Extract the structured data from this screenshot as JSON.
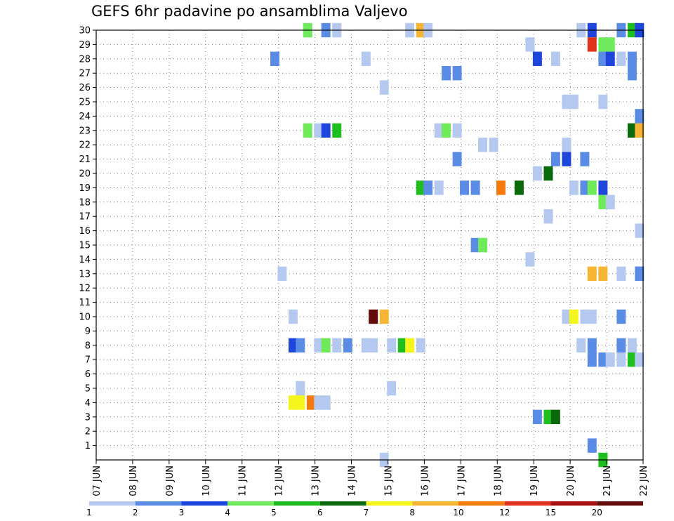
{
  "title": "GEFS 6hr padavine po ansamblima Valjevo",
  "chart_data": {
    "type": "heatmap",
    "title": "GEFS 6hr padavine po ansamblima Valjevo",
    "x_ticks": [
      "07 JUN",
      "08 JUN",
      "09 JUN",
      "10 JUN",
      "11 JUN",
      "12 JUN",
      "13 JUN",
      "14 JUN",
      "15 JUN",
      "16 JUN",
      "17 JUN",
      "18 JUN",
      "19 JUN",
      "20 JUN",
      "21 JUN",
      "22 JUN"
    ],
    "y_ticks": [
      "1",
      "2",
      "3",
      "4",
      "5",
      "6",
      "7",
      "8",
      "9",
      "10",
      "11",
      "12",
      "13",
      "14",
      "15",
      "16",
      "17",
      "18",
      "19",
      "20",
      "21",
      "22",
      "23",
      "24",
      "25",
      "26",
      "27",
      "28",
      "29",
      "30"
    ],
    "xlim": [
      7,
      22
    ],
    "ylim": [
      0,
      30
    ],
    "grid": true,
    "colorbar": {
      "labels": [
        "1",
        "2",
        "3",
        "4",
        "5",
        "6",
        "7",
        "8",
        "10",
        "12",
        "15",
        "20"
      ],
      "colors": [
        "#b4c8f0",
        "#5a8ce6",
        "#1e46dc",
        "#6eea5a",
        "#1ebe1e",
        "#0a690a",
        "#f5f51e",
        "#f5b432",
        "#f57a0a",
        "#e1321e",
        "#a50f0f",
        "#640a0a"
      ]
    },
    "cells": [
      {
        "x": 12.8,
        "y": 30,
        "v": "4"
      },
      {
        "x": 13.3,
        "y": 30,
        "v": "2"
      },
      {
        "x": 13.6,
        "y": 30,
        "v": "1"
      },
      {
        "x": 15.6,
        "y": 30,
        "v": "1"
      },
      {
        "x": 15.9,
        "y": 30,
        "v": "8"
      },
      {
        "x": 16.1,
        "y": 30,
        "v": "1"
      },
      {
        "x": 20.3,
        "y": 30,
        "v": "1"
      },
      {
        "x": 20.6,
        "y": 30,
        "v": "3"
      },
      {
        "x": 21.4,
        "y": 30,
        "v": "2"
      },
      {
        "x": 21.7,
        "y": 30,
        "v": "5"
      },
      {
        "x": 21.9,
        "y": 30,
        "v": "3"
      },
      {
        "x": 18.9,
        "y": 29,
        "v": "1"
      },
      {
        "x": 20.6,
        "y": 29,
        "v": "12"
      },
      {
        "x": 20.9,
        "y": 29,
        "v": "4"
      },
      {
        "x": 21.1,
        "y": 29,
        "v": "4"
      },
      {
        "x": 11.9,
        "y": 28,
        "v": "2"
      },
      {
        "x": 14.4,
        "y": 28,
        "v": "1"
      },
      {
        "x": 19.1,
        "y": 28,
        "v": "3"
      },
      {
        "x": 19.6,
        "y": 28,
        "v": "1"
      },
      {
        "x": 20.9,
        "y": 28,
        "v": "2"
      },
      {
        "x": 21.1,
        "y": 28,
        "v": "3"
      },
      {
        "x": 21.4,
        "y": 28,
        "v": "1"
      },
      {
        "x": 21.7,
        "y": 28,
        "v": "2"
      },
      {
        "x": 16.6,
        "y": 27,
        "v": "2"
      },
      {
        "x": 16.9,
        "y": 27,
        "v": "2"
      },
      {
        "x": 21.7,
        "y": 27,
        "v": "2"
      },
      {
        "x": 14.9,
        "y": 26,
        "v": "1"
      },
      {
        "x": 19.9,
        "y": 25,
        "v": "1"
      },
      {
        "x": 20.1,
        "y": 25,
        "v": "1"
      },
      {
        "x": 20.9,
        "y": 25,
        "v": "1"
      },
      {
        "x": 21.9,
        "y": 24,
        "v": "2"
      },
      {
        "x": 12.8,
        "y": 23,
        "v": "4"
      },
      {
        "x": 13.1,
        "y": 23,
        "v": "1"
      },
      {
        "x": 13.3,
        "y": 23,
        "v": "3"
      },
      {
        "x": 13.6,
        "y": 23,
        "v": "5"
      },
      {
        "x": 16.4,
        "y": 23,
        "v": "1"
      },
      {
        "x": 16.6,
        "y": 23,
        "v": "4"
      },
      {
        "x": 16.9,
        "y": 23,
        "v": "1"
      },
      {
        "x": 21.7,
        "y": 23,
        "v": "6"
      },
      {
        "x": 21.9,
        "y": 23,
        "v": "8"
      },
      {
        "x": 17.6,
        "y": 22,
        "v": "1"
      },
      {
        "x": 17.9,
        "y": 22,
        "v": "1"
      },
      {
        "x": 19.9,
        "y": 22,
        "v": "1"
      },
      {
        "x": 16.9,
        "y": 21,
        "v": "2"
      },
      {
        "x": 19.6,
        "y": 21,
        "v": "2"
      },
      {
        "x": 19.9,
        "y": 21,
        "v": "3"
      },
      {
        "x": 20.4,
        "y": 21,
        "v": "2"
      },
      {
        "x": 19.1,
        "y": 20,
        "v": "1"
      },
      {
        "x": 19.4,
        "y": 20,
        "v": "6"
      },
      {
        "x": 15.9,
        "y": 19,
        "v": "5"
      },
      {
        "x": 16.1,
        "y": 19,
        "v": "2"
      },
      {
        "x": 16.4,
        "y": 19,
        "v": "1"
      },
      {
        "x": 17.1,
        "y": 19,
        "v": "2"
      },
      {
        "x": 17.4,
        "y": 19,
        "v": "2"
      },
      {
        "x": 18.1,
        "y": 19,
        "v": "10"
      },
      {
        "x": 18.6,
        "y": 19,
        "v": "6"
      },
      {
        "x": 20.1,
        "y": 19,
        "v": "1"
      },
      {
        "x": 20.4,
        "y": 19,
        "v": "2"
      },
      {
        "x": 20.6,
        "y": 19,
        "v": "4"
      },
      {
        "x": 20.9,
        "y": 19,
        "v": "3"
      },
      {
        "x": 20.9,
        "y": 18,
        "v": "4"
      },
      {
        "x": 21.1,
        "y": 18,
        "v": "1"
      },
      {
        "x": 19.4,
        "y": 17,
        "v": "1"
      },
      {
        "x": 21.9,
        "y": 16,
        "v": "1"
      },
      {
        "x": 17.4,
        "y": 15,
        "v": "2"
      },
      {
        "x": 17.6,
        "y": 15,
        "v": "4"
      },
      {
        "x": 18.9,
        "y": 14,
        "v": "1"
      },
      {
        "x": 12.1,
        "y": 13,
        "v": "1"
      },
      {
        "x": 20.6,
        "y": 13,
        "v": "8"
      },
      {
        "x": 20.9,
        "y": 13,
        "v": "8"
      },
      {
        "x": 21.4,
        "y": 13,
        "v": "1"
      },
      {
        "x": 21.9,
        "y": 13,
        "v": "2"
      },
      {
        "x": 12.4,
        "y": 10,
        "v": "1"
      },
      {
        "x": 14.6,
        "y": 10,
        "v": "20"
      },
      {
        "x": 14.9,
        "y": 10,
        "v": "8"
      },
      {
        "x": 19.9,
        "y": 10,
        "v": "1"
      },
      {
        "x": 20.1,
        "y": 10,
        "v": "7"
      },
      {
        "x": 20.4,
        "y": 10,
        "v": "1"
      },
      {
        "x": 20.6,
        "y": 10,
        "v": "1"
      },
      {
        "x": 21.4,
        "y": 10,
        "v": "2"
      },
      {
        "x": 12.4,
        "y": 8,
        "v": "3"
      },
      {
        "x": 12.6,
        "y": 8,
        "v": "2"
      },
      {
        "x": 13.1,
        "y": 8,
        "v": "1"
      },
      {
        "x": 13.3,
        "y": 8,
        "v": "4"
      },
      {
        "x": 13.6,
        "y": 8,
        "v": "1"
      },
      {
        "x": 13.9,
        "y": 8,
        "v": "2"
      },
      {
        "x": 14.4,
        "y": 8,
        "v": "1"
      },
      {
        "x": 14.6,
        "y": 8,
        "v": "1"
      },
      {
        "x": 15.1,
        "y": 8,
        "v": "1"
      },
      {
        "x": 15.4,
        "y": 8,
        "v": "5"
      },
      {
        "x": 15.6,
        "y": 8,
        "v": "7"
      },
      {
        "x": 15.9,
        "y": 8,
        "v": "1"
      },
      {
        "x": 20.3,
        "y": 8,
        "v": "1"
      },
      {
        "x": 20.6,
        "y": 8,
        "v": "2"
      },
      {
        "x": 21.4,
        "y": 8,
        "v": "2"
      },
      {
        "x": 21.7,
        "y": 8,
        "v": "1"
      },
      {
        "x": 20.6,
        "y": 7,
        "v": "2"
      },
      {
        "x": 20.9,
        "y": 7,
        "v": "2"
      },
      {
        "x": 21.1,
        "y": 7,
        "v": "1"
      },
      {
        "x": 21.4,
        "y": 7,
        "v": "1"
      },
      {
        "x": 21.7,
        "y": 7,
        "v": "5"
      },
      {
        "x": 21.9,
        "y": 7,
        "v": "1"
      },
      {
        "x": 12.6,
        "y": 5,
        "v": "1"
      },
      {
        "x": 15.1,
        "y": 5,
        "v": "1"
      },
      {
        "x": 12.4,
        "y": 4,
        "v": "7"
      },
      {
        "x": 12.6,
        "y": 4,
        "v": "7"
      },
      {
        "x": 12.9,
        "y": 4,
        "v": "10"
      },
      {
        "x": 13.1,
        "y": 4,
        "v": "1"
      },
      {
        "x": 13.3,
        "y": 4,
        "v": "1"
      },
      {
        "x": 19.1,
        "y": 3,
        "v": "2"
      },
      {
        "x": 19.4,
        "y": 3,
        "v": "5"
      },
      {
        "x": 19.6,
        "y": 3,
        "v": "6"
      },
      {
        "x": 20.6,
        "y": 1,
        "v": "2"
      },
      {
        "x": 20.9,
        "y": 0,
        "v": "5"
      },
      {
        "x": 14.9,
        "y": 0,
        "v": "1"
      }
    ]
  }
}
